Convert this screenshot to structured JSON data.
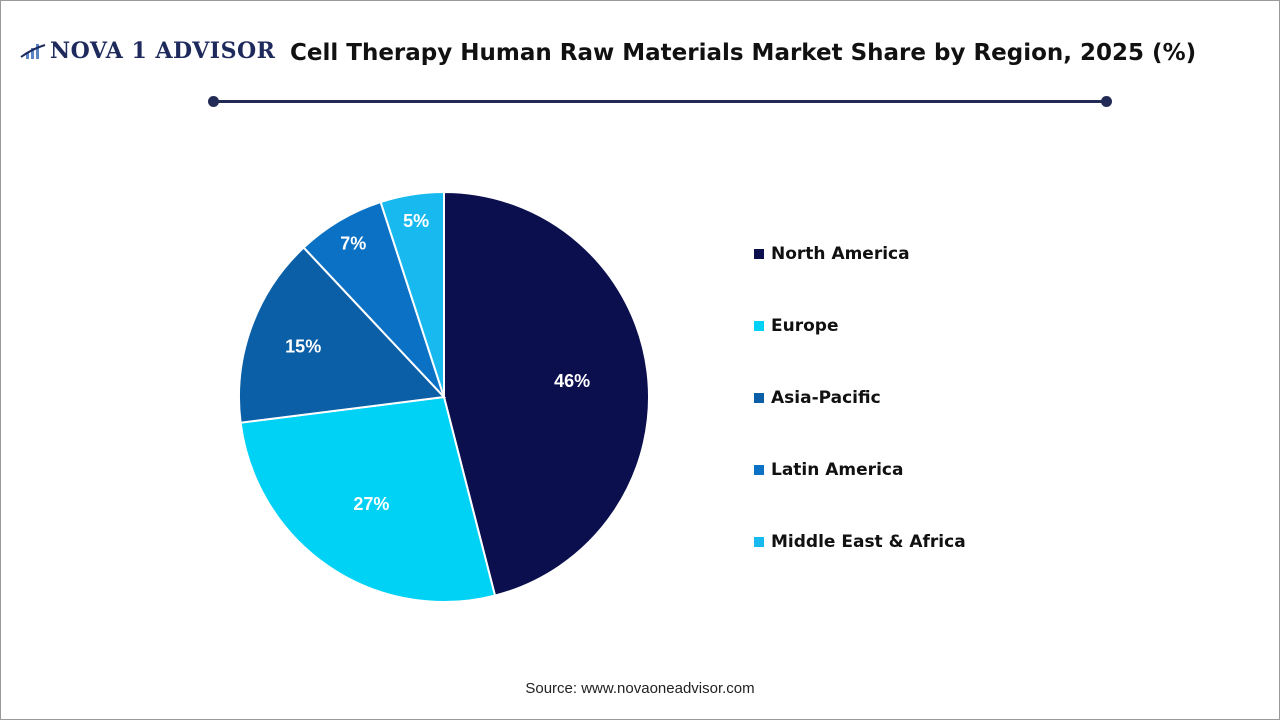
{
  "logo": {
    "text": "NOVA 1 ADVISOR"
  },
  "chart_data": {
    "type": "pie",
    "title": "Cell Therapy Human Raw Materials Market Share by Region, 2025 (%)",
    "categories": [
      "North America",
      "Europe",
      "Asia-Pacific",
      "Latin America",
      "Middle East & Africa"
    ],
    "values": [
      46,
      27,
      15,
      7,
      5
    ],
    "data_labels": [
      "46%",
      "27%",
      "15%",
      "7%",
      "5%"
    ],
    "colors": [
      "#0b0f4e",
      "#00d2f5",
      "#0a5fa6",
      "#0b71c4",
      "#17b9ef"
    ],
    "start_angle": "top",
    "direction": "clockwise",
    "legend_position": "right"
  },
  "source": "Source: www.novaoneadvisor.com"
}
